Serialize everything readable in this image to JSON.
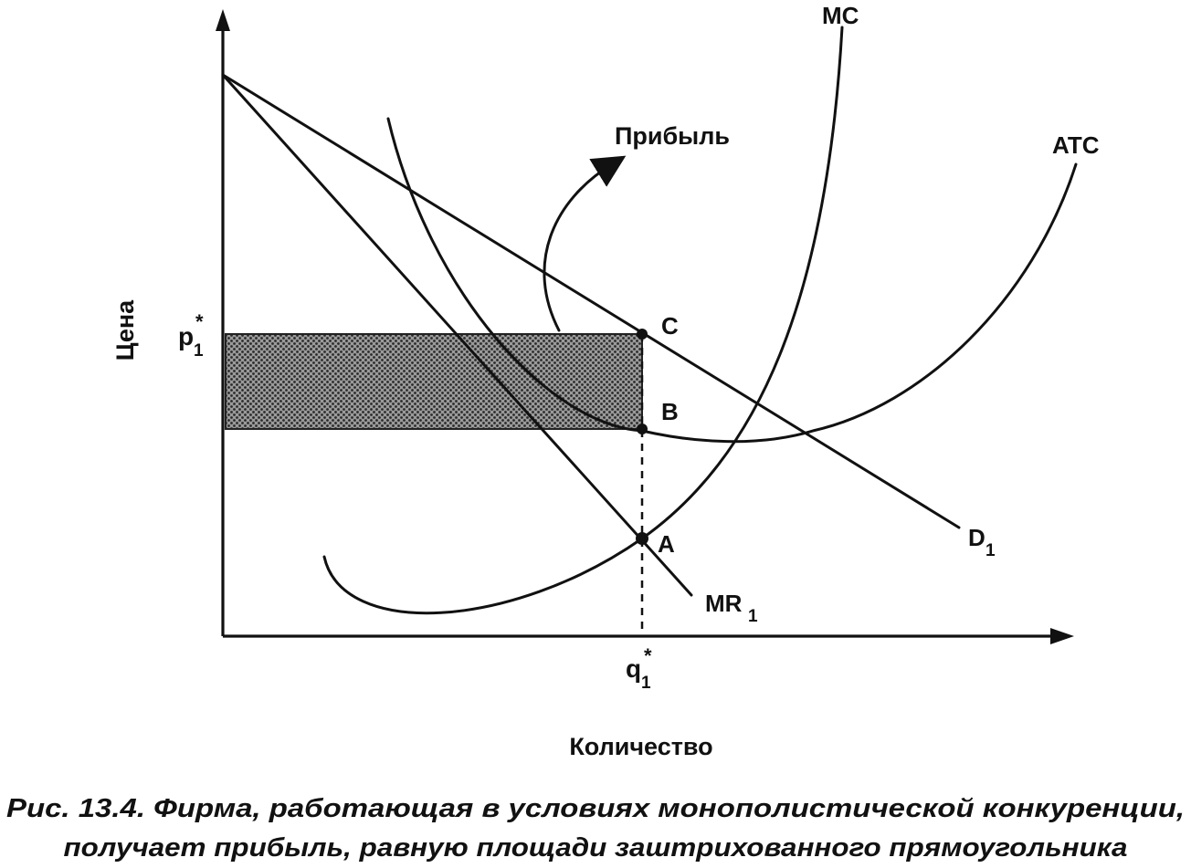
{
  "axes": {
    "y_label": "Цена",
    "x_label": "Количество",
    "p_tick": "p",
    "p_tick_sub": "1",
    "p_tick_sup": "*",
    "q_tick": "q",
    "q_tick_sub": "1",
    "q_tick_sup": "*"
  },
  "curves": {
    "mc": "MC",
    "atc": "ATC",
    "demand": "D",
    "demand_sub": "1",
    "mr": "MR",
    "mr_sub": "1"
  },
  "points": {
    "a": "A",
    "b": "B",
    "c": "C"
  },
  "profit_label": "Прибыль",
  "caption": {
    "line1": "Рис. 13.4. Фирма, работающая в условиях монополистической конкуренции,",
    "line2": "получает прибыль, равную площади заштрихованного прямоугольника"
  }
}
